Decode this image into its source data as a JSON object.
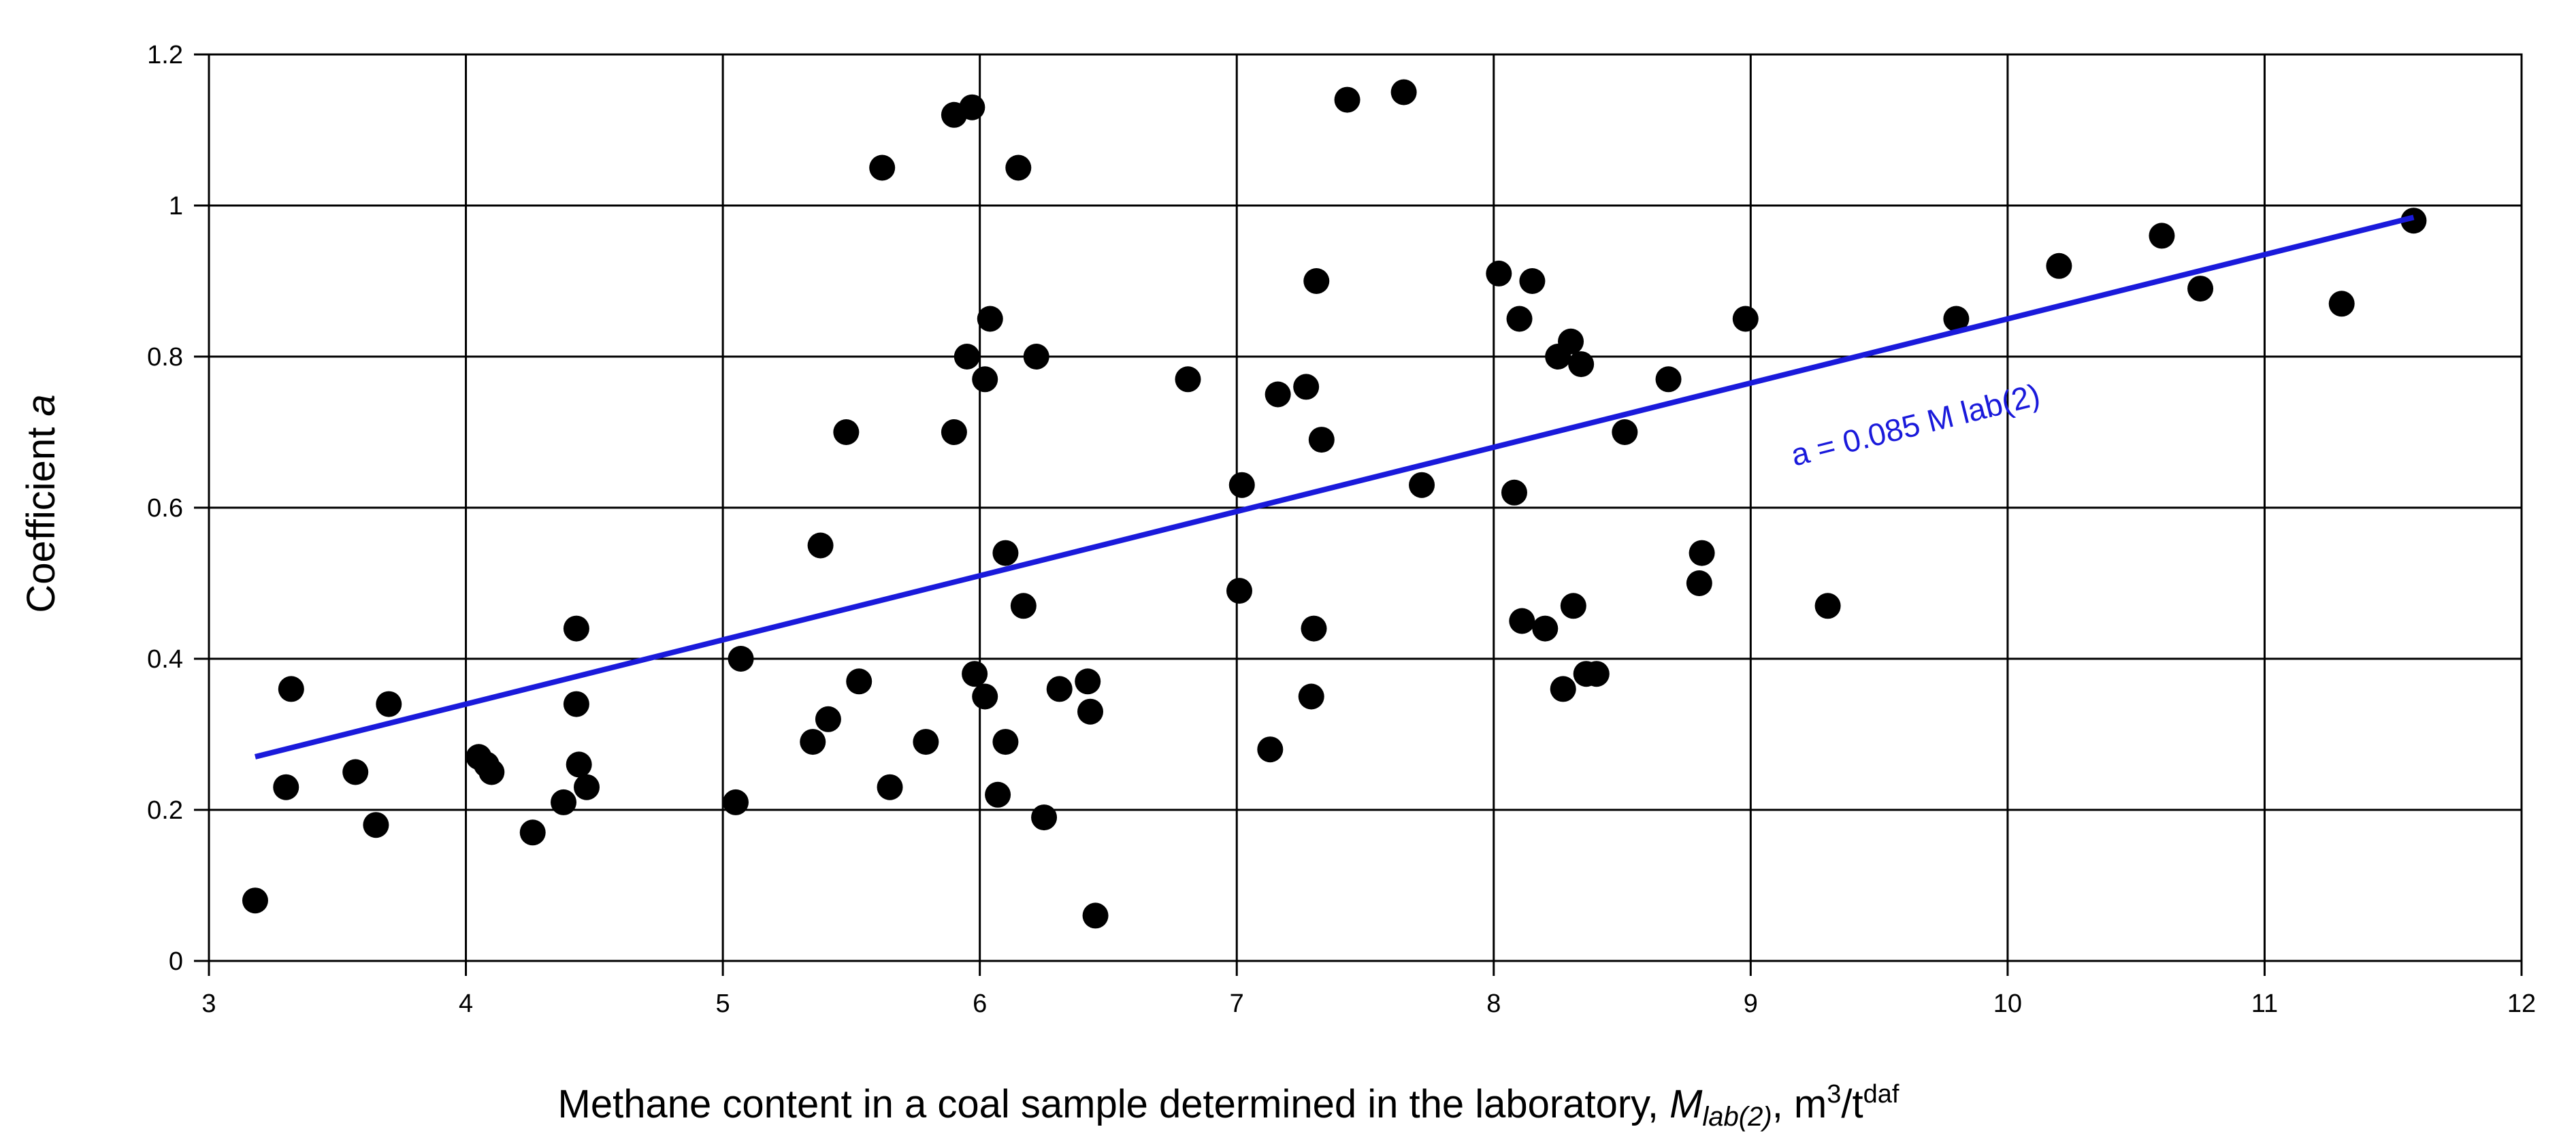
{
  "chart_data": {
    "type": "scatter",
    "xlim": [
      3,
      12
    ],
    "ylim": [
      0,
      1.2
    ],
    "xticks": [
      "3",
      "4",
      "5",
      "6",
      "7",
      "8",
      "9",
      "10",
      "11",
      "12"
    ],
    "yticks": [
      "0",
      "0.2",
      "0.4",
      "0.6",
      "0.8",
      "1",
      "1.2"
    ],
    "grid": true,
    "xlabel": {
      "prefix": "Methane content in a coal sample determined in the laboratory, ",
      "var": "M",
      "var_sub": "lab(2)",
      "sep": ", ",
      "unit": "m",
      "unit_sup": "3",
      "unit_mid": "/t",
      "unit_sup2": "daf"
    },
    "ylabel": {
      "prefix": "Coefficient ",
      "var": "a"
    },
    "trendline": {
      "label": "a = 0.085 M lab(2)",
      "slope": 0.085,
      "x": [
        3.18,
        11.58
      ],
      "color": "#1a1adb"
    },
    "point_color": "#000000",
    "points": [
      [
        3.18,
        0.08
      ],
      [
        3.3,
        0.23
      ],
      [
        3.32,
        0.36
      ],
      [
        3.57,
        0.25
      ],
      [
        3.65,
        0.18
      ],
      [
        3.7,
        0.34
      ],
      [
        4.05,
        0.27
      ],
      [
        4.08,
        0.26
      ],
      [
        4.1,
        0.25
      ],
      [
        4.26,
        0.17
      ],
      [
        4.38,
        0.21
      ],
      [
        4.43,
        0.44
      ],
      [
        4.43,
        0.34
      ],
      [
        4.44,
        0.26
      ],
      [
        4.47,
        0.23
      ],
      [
        5.05,
        0.21
      ],
      [
        5.07,
        0.4
      ],
      [
        5.35,
        0.29
      ],
      [
        5.38,
        0.55
      ],
      [
        5.41,
        0.32
      ],
      [
        5.48,
        0.7
      ],
      [
        5.53,
        0.37
      ],
      [
        5.62,
        1.05
      ],
      [
        5.65,
        0.23
      ],
      [
        5.79,
        0.29
      ],
      [
        5.9,
        1.12
      ],
      [
        5.9,
        0.7
      ],
      [
        5.95,
        0.8
      ],
      [
        5.97,
        1.13
      ],
      [
        5.98,
        0.38
      ],
      [
        6.02,
        0.77
      ],
      [
        6.02,
        0.35
      ],
      [
        6.04,
        0.85
      ],
      [
        6.07,
        0.22
      ],
      [
        6.1,
        0.54
      ],
      [
        6.1,
        0.29
      ],
      [
        6.15,
        1.05
      ],
      [
        6.17,
        0.47
      ],
      [
        6.22,
        0.8
      ],
      [
        6.25,
        0.19
      ],
      [
        6.31,
        0.36
      ],
      [
        6.42,
        0.37
      ],
      [
        6.43,
        0.33
      ],
      [
        6.45,
        0.06
      ],
      [
        6.81,
        0.77
      ],
      [
        7.01,
        0.49
      ],
      [
        7.02,
        0.63
      ],
      [
        7.13,
        0.28
      ],
      [
        7.16,
        0.75
      ],
      [
        7.27,
        0.76
      ],
      [
        7.29,
        0.35
      ],
      [
        7.3,
        0.44
      ],
      [
        7.31,
        0.9
      ],
      [
        7.33,
        0.69
      ],
      [
        7.43,
        1.14
      ],
      [
        7.65,
        1.15
      ],
      [
        7.72,
        0.63
      ],
      [
        8.02,
        0.91
      ],
      [
        8.08,
        0.62
      ],
      [
        8.1,
        0.85
      ],
      [
        8.11,
        0.45
      ],
      [
        8.15,
        0.9
      ],
      [
        8.2,
        0.44
      ],
      [
        8.25,
        0.8
      ],
      [
        8.27,
        0.36
      ],
      [
        8.3,
        0.82
      ],
      [
        8.31,
        0.47
      ],
      [
        8.34,
        0.79
      ],
      [
        8.36,
        0.38
      ],
      [
        8.4,
        0.38
      ],
      [
        8.51,
        0.7
      ],
      [
        8.68,
        0.77
      ],
      [
        8.8,
        0.5
      ],
      [
        8.81,
        0.54
      ],
      [
        8.98,
        0.85
      ],
      [
        9.3,
        0.47
      ],
      [
        9.8,
        0.85
      ],
      [
        10.2,
        0.92
      ],
      [
        10.6,
        0.96
      ],
      [
        10.75,
        0.89
      ],
      [
        11.3,
        0.87
      ],
      [
        11.58,
        0.98
      ]
    ]
  }
}
